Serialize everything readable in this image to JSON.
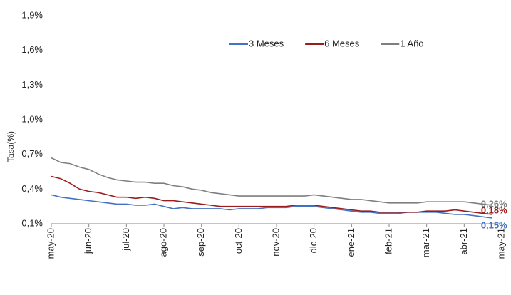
{
  "chart_data": {
    "type": "line",
    "y_label": "Tasa(%)",
    "legend": "top",
    "categories": [
      "may-20",
      null,
      null,
      null,
      "jun-20",
      null,
      null,
      null,
      "jul-20",
      null,
      null,
      null,
      "ago-20",
      null,
      null,
      null,
      "sep-20",
      null,
      null,
      null,
      "oct-20",
      null,
      null,
      null,
      "nov-20",
      null,
      null,
      null,
      "dic-20",
      null,
      null,
      null,
      "ene-21",
      null,
      null,
      null,
      "feb-21",
      null,
      null,
      null,
      "mar-21",
      null,
      null,
      null,
      "abr-21",
      null,
      null,
      null,
      "may-21"
    ],
    "ylim": [
      0.1,
      1.9
    ],
    "yticks": [
      {
        "value": 0.1,
        "label": "0,1%"
      },
      {
        "value": 0.4,
        "label": "0,4%"
      },
      {
        "value": 0.7,
        "label": "0,7%"
      },
      {
        "value": 1.0,
        "label": "1,0%"
      },
      {
        "value": 1.3,
        "label": "1,3%"
      },
      {
        "value": 1.6,
        "label": "1,6%"
      },
      {
        "value": 1.9,
        "label": "1,9%"
      }
    ],
    "series": [
      {
        "name": "3 Meses",
        "color": "#4472c4",
        "end_label": "0,15%",
        "values": [
          0.35,
          0.33,
          0.32,
          0.31,
          0.3,
          0.29,
          0.28,
          0.27,
          0.27,
          0.26,
          0.26,
          0.27,
          0.25,
          0.23,
          0.24,
          0.23,
          0.23,
          0.23,
          0.23,
          0.22,
          0.23,
          0.23,
          0.23,
          0.24,
          0.24,
          0.24,
          0.25,
          0.25,
          0.25,
          0.24,
          0.23,
          0.22,
          0.21,
          0.2,
          0.2,
          0.19,
          0.19,
          0.19,
          0.2,
          0.2,
          0.2,
          0.2,
          0.19,
          0.18,
          0.18,
          0.17,
          0.16,
          0.15,
          null
        ]
      },
      {
        "name": "6 Meses",
        "color": "#9b1c1c",
        "end_label": "0,18%",
        "values": [
          0.51,
          0.49,
          0.45,
          0.4,
          0.38,
          0.37,
          0.35,
          0.33,
          0.33,
          0.32,
          0.33,
          0.32,
          0.3,
          0.3,
          0.29,
          0.28,
          0.27,
          0.26,
          0.25,
          0.25,
          0.25,
          0.25,
          0.25,
          0.25,
          0.25,
          0.25,
          0.26,
          0.26,
          0.26,
          0.25,
          0.24,
          0.23,
          0.22,
          0.21,
          0.21,
          0.2,
          0.2,
          0.2,
          0.2,
          0.2,
          0.21,
          0.21,
          0.21,
          0.22,
          0.21,
          0.2,
          0.19,
          0.18,
          null
        ]
      },
      {
        "name": "1 Año",
        "color": "#7f7f7f",
        "end_label": "0,26%",
        "values": [
          0.67,
          0.63,
          0.62,
          0.59,
          0.57,
          0.53,
          0.5,
          0.48,
          0.47,
          0.46,
          0.46,
          0.45,
          0.45,
          0.43,
          0.42,
          0.4,
          0.39,
          0.37,
          0.36,
          0.35,
          0.34,
          0.34,
          0.34,
          0.34,
          0.34,
          0.34,
          0.34,
          0.34,
          0.35,
          0.34,
          0.33,
          0.32,
          0.31,
          0.31,
          0.3,
          0.29,
          0.28,
          0.28,
          0.28,
          0.28,
          0.29,
          0.29,
          0.29,
          0.29,
          0.29,
          0.28,
          0.27,
          0.26,
          null
        ]
      }
    ]
  }
}
